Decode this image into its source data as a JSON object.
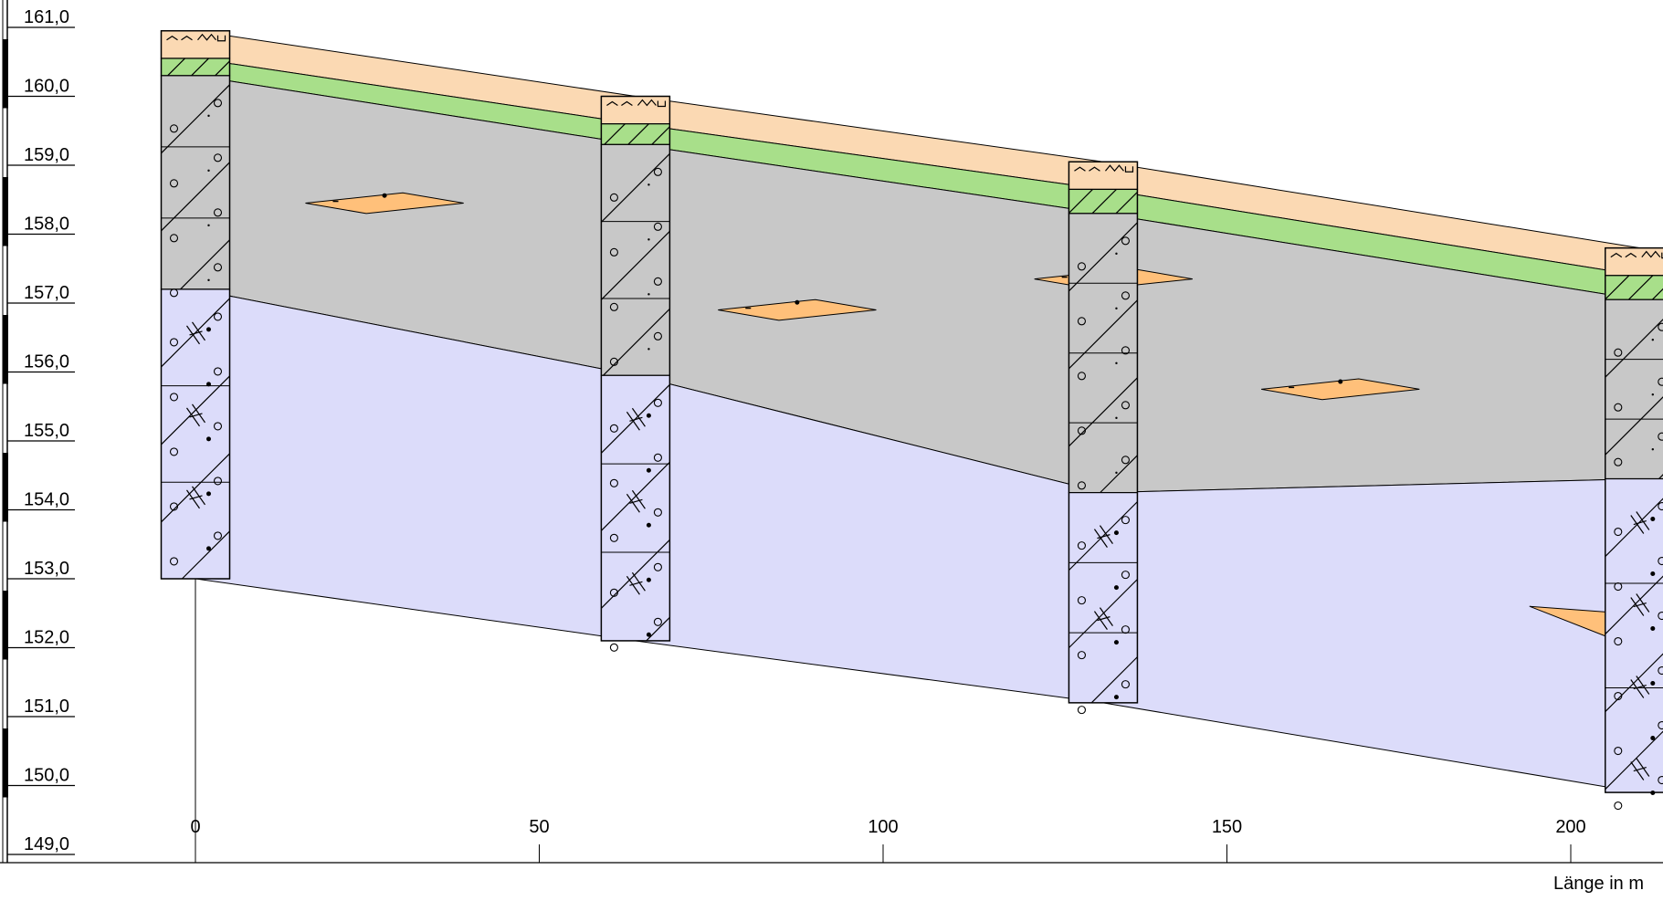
{
  "elevation_axis": {
    "labels": [
      "161,0",
      "160,0",
      "159,0",
      "158,0",
      "157,0",
      "156,0",
      "155,0",
      "154,0",
      "153,0",
      "152,0",
      "151,0",
      "150,0",
      "149,0"
    ]
  },
  "length_axis": {
    "labels": [
      "0",
      "50",
      "100",
      "150",
      "200"
    ],
    "title": "Länge in m"
  },
  "chart_data": {
    "type": "geological cross-section",
    "x_unit": "m",
    "y_unit": "m",
    "xlim": [
      -28,
      212
    ],
    "ylim": [
      149.0,
      161.3
    ],
    "boreholes": [
      {
        "x": 0,
        "top": 160.95,
        "bottom": 153.0
      },
      {
        "x": 64,
        "top": 160.0,
        "bottom": 152.1
      },
      {
        "x": 132,
        "top": 159.05,
        "bottom": 151.2
      },
      {
        "x": 210,
        "top": 157.8,
        "bottom": 149.9
      }
    ],
    "layers": [
      {
        "color": "#fbd9b3",
        "top": [
          160.95,
          160.0,
          159.05,
          157.8
        ],
        "bottom": [
          160.55,
          159.6,
          158.65,
          157.4
        ]
      },
      {
        "color": "#a8df8a",
        "top": [
          160.55,
          159.6,
          158.65,
          157.4
        ],
        "bottom": [
          160.3,
          159.3,
          158.3,
          157.05
        ]
      },
      {
        "color": "#c8c8c8",
        "top": [
          160.3,
          159.3,
          158.3,
          157.05
        ],
        "bottom": [
          157.2,
          155.95,
          154.25,
          154.45
        ]
      },
      {
        "color": "#dcdcfa",
        "top": [
          157.2,
          155.95,
          154.25,
          154.45
        ],
        "bottom": [
          153.0,
          152.1,
          151.2,
          149.9
        ]
      }
    ],
    "lenses": [
      {
        "x0": 16,
        "x1": 39,
        "y": 158.45,
        "h": 0.15
      },
      {
        "x0": 76,
        "x1": 99,
        "y": 156.9,
        "h": 0.15
      },
      {
        "x0": 122,
        "x1": 145,
        "y": 157.35,
        "h": 0.15
      },
      {
        "x0": 155,
        "x1": 178,
        "y": 155.75,
        "h": 0.15
      }
    ],
    "wedge": {
      "x0": 194,
      "x1": 212,
      "ytop": 152.6,
      "ybot": 152.0
    },
    "colors": {
      "topsoil": "#fbd9b3",
      "clay": "#a8df8a",
      "silt": "#c8c8c8",
      "bedrock": "#dcdcfa",
      "sand": "#ffc07a"
    }
  }
}
